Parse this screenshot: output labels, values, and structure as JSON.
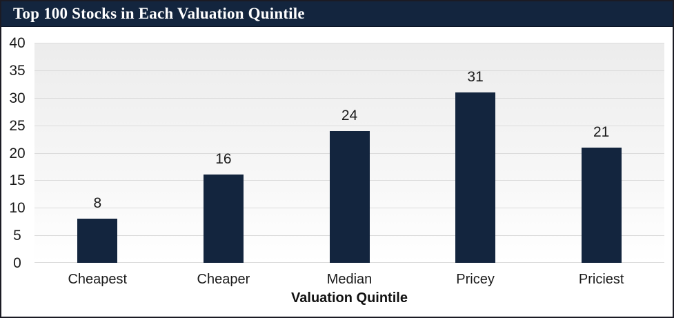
{
  "header": {
    "title": "Top 100 Stocks in Each Valuation Quintile"
  },
  "chart_data": {
    "type": "bar",
    "title": "Top 100 Stocks in Each Valuation Quintile",
    "categories": [
      "Cheapest",
      "Cheaper",
      "Median",
      "Pricey",
      "Priciest"
    ],
    "values": [
      8,
      16,
      24,
      31,
      21
    ],
    "xlabel": "Valuation Quintile",
    "ylabel": "",
    "ylim": [
      0,
      40
    ],
    "ytick_step": 5,
    "yticks": [
      0,
      5,
      10,
      15,
      20,
      25,
      30,
      35,
      40
    ],
    "grid": true,
    "legend": false,
    "colors": {
      "bar": "#13253e",
      "title_bar": "#13253e",
      "title_text": "#ffffff",
      "gridline": "#dbdbdb",
      "plot_bg_top": "#ececec",
      "plot_bg_bottom": "#ffffff",
      "label_text": "#1a1a1a",
      "frame_border": "#1b1b24"
    }
  }
}
